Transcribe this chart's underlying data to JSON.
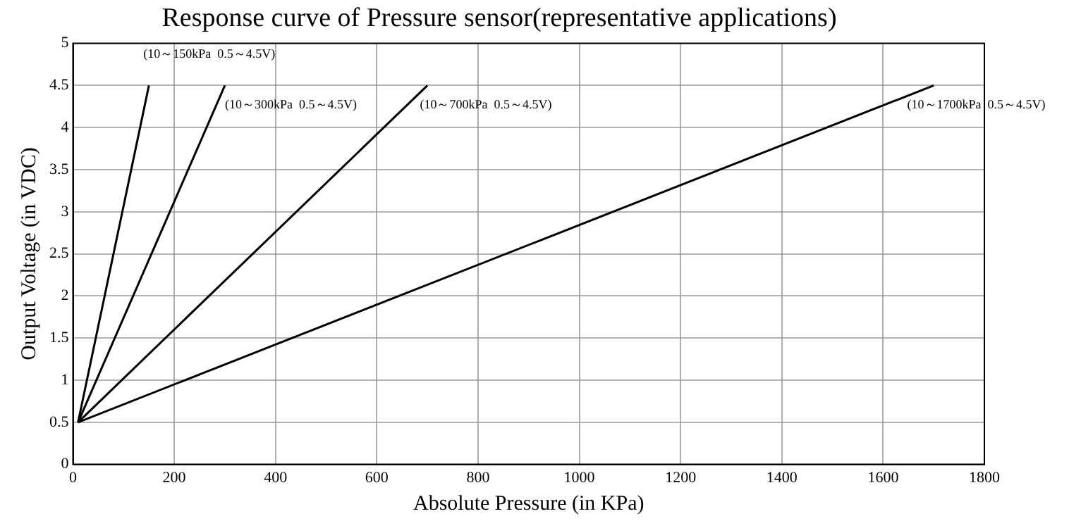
{
  "chart_data": {
    "type": "line",
    "title": "Response curve of Pressure sensor(representative applications)",
    "xlabel": "Absolute Pressure (in KPa)",
    "ylabel": "Output Voltage (in VDC)",
    "series": [
      {
        "color": "#000000",
        "x": [
          10,
          150
        ],
        "values": [
          0.5,
          4.5
        ]
      },
      {
        "color": "#000000",
        "x": [
          10,
          300
        ],
        "values": [
          0.5,
          4.5
        ]
      },
      {
        "color": "#000000",
        "x": [
          10,
          700
        ],
        "values": [
          0.5,
          4.5
        ]
      },
      {
        "color": "#000000",
        "x": [
          10,
          1700
        ],
        "values": [
          0.5,
          4.5
        ]
      }
    ],
    "xlim": [
      0,
      1800
    ],
    "xticks": [
      0,
      200,
      400,
      600,
      800,
      1000,
      1200,
      1400,
      1600,
      1800
    ],
    "ylim": [
      0,
      5
    ],
    "yticks": [
      0,
      0.5,
      1,
      1.5,
      2,
      2.5,
      3,
      3.5,
      4,
      4.5,
      5
    ],
    "grid": true,
    "legend": false,
    "marker": "none",
    "line_style": "solid",
    "annotations": [
      "(10～150kPa  0.5～4.5V)",
      "(10～300kPa  0.5～4.5V)",
      "(10～700kPa  0.5～4.5V)",
      "(10～1700kPa  0.5～4.5V)"
    ]
  }
}
